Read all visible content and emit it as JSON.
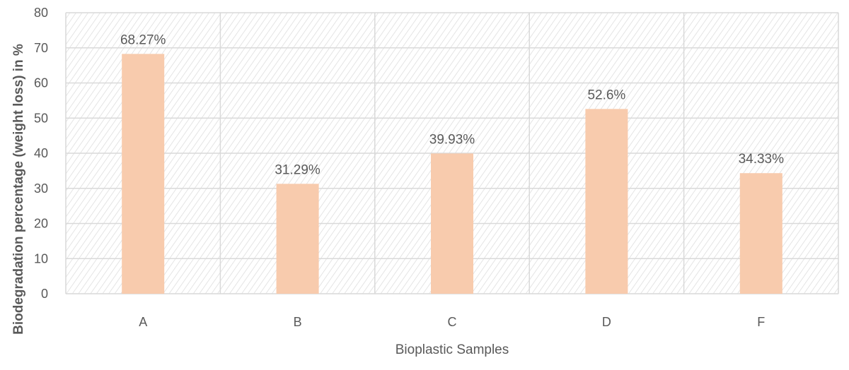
{
  "chart_data": {
    "type": "bar",
    "title": "",
    "xlabel": "Bioplastic Samples",
    "ylabel": "Biodegradation percentage (weight loss) in %",
    "categories": [
      "A",
      "B",
      "C",
      "D",
      "F"
    ],
    "series": [
      {
        "values": [
          68.27,
          31.29,
          39.93,
          52.6,
          34.33
        ],
        "labels": [
          "68.27%",
          "31.29%",
          "39.93%",
          "52.6%",
          "34.33%"
        ]
      }
    ],
    "ylim": [
      0,
      80
    ],
    "yticks": [
      "0",
      "10",
      "20",
      "30",
      "40",
      "50",
      "60",
      "70",
      "80"
    ],
    "grid": true,
    "legend": "none",
    "colors": {
      "bar": "#f8cbad",
      "grid": "#d9d9d9",
      "hatch": "#d9d9d9",
      "text": "#595959"
    }
  }
}
